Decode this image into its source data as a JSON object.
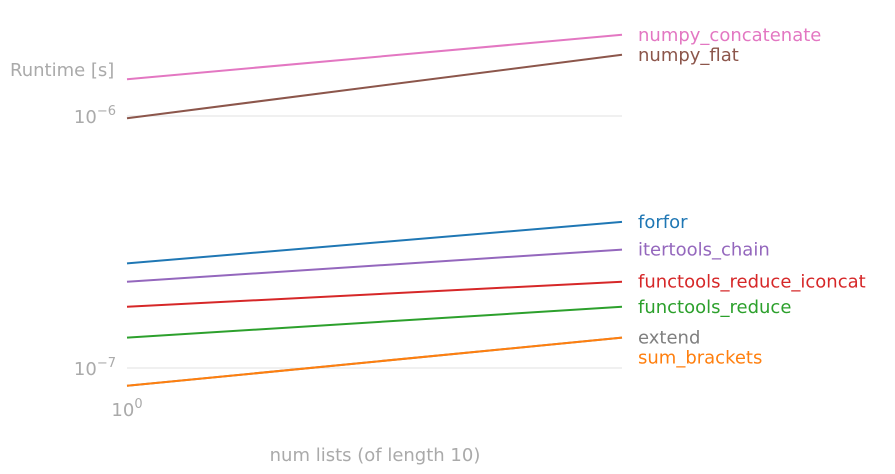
{
  "chart_data": {
    "type": "line",
    "title": "",
    "xlabel": "num lists (of length 10)",
    "ylabel": "Runtime [s]",
    "xscale": "log",
    "yscale": "log",
    "x": [
      1,
      2
    ],
    "ylim": [
      8.5e-08,
      2.1e-06
    ],
    "yticks": [
      1e-07,
      1e-06
    ],
    "ytick_labels": [
      {
        "base": "10",
        "exp": "−7"
      },
      {
        "base": "10",
        "exp": "−6"
      }
    ],
    "xtick_labels": [
      {
        "base": "10",
        "exp": "0"
      }
    ],
    "grid": "horizontal",
    "legend": "right-end-labels",
    "series": [
      {
        "name": "numpy_concatenate",
        "color": "#e377c2",
        "values": [
          1.4e-06,
          2.1e-06
        ]
      },
      {
        "name": "numpy_flat",
        "color": "#8c564b",
        "values": [
          9.8e-07,
          1.75e-06
        ]
      },
      {
        "name": "forfor",
        "color": "#1f77b4",
        "values": [
          2.6e-07,
          3.8e-07
        ]
      },
      {
        "name": "itertools_chain",
        "color": "#9467bd",
        "values": [
          2.2e-07,
          2.95e-07
        ]
      },
      {
        "name": "functools_reduce_iconcat",
        "color": "#d62728",
        "values": [
          1.75e-07,
          2.2e-07
        ]
      },
      {
        "name": "functools_reduce",
        "color": "#2ca02c",
        "values": [
          1.32e-07,
          1.75e-07
        ]
      },
      {
        "name": "extend",
        "color": "#7f7f7f",
        "values": [
          8.5e-08,
          1.32e-07
        ]
      },
      {
        "name": "sum_brackets",
        "color": "#ff7f0e",
        "values": [
          8.5e-08,
          1.32e-07
        ]
      }
    ]
  }
}
